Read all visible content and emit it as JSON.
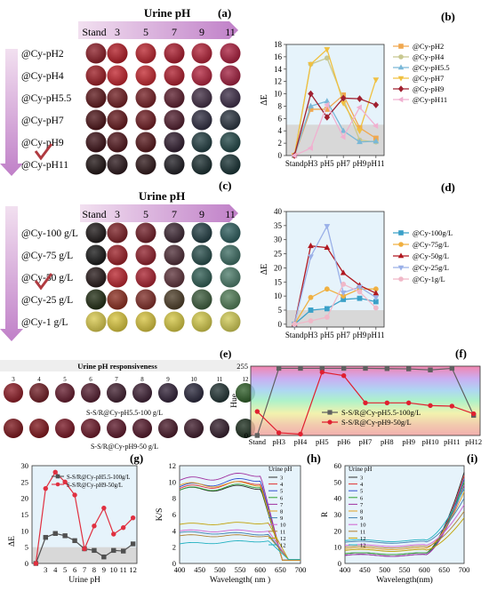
{
  "panel_labels": {
    "a": "(a)",
    "b": "(b)",
    "c": "(c)",
    "d": "(d)",
    "e": "(e)",
    "f": "(f)",
    "g": "(g)",
    "h": "(h)",
    "i": "(i)"
  },
  "panel_a": {
    "header": "Urine pH",
    "columns": [
      "Stand",
      "3",
      "5",
      "7",
      "9",
      "11"
    ],
    "rows": [
      {
        "label": "@Cy-pH2",
        "colors": [
          "#8a1a24",
          "#b01822",
          "#b8202a",
          "#a8182a",
          "#b01e34",
          "#a81a3a"
        ]
      },
      {
        "label": "@Cy-pH4",
        "colors": [
          "#9a1820",
          "#c0202a",
          "#c2242c",
          "#ac1a2a",
          "#b0203a",
          "#a01c3c"
        ]
      },
      {
        "label": "@Cy-pH5.5",
        "colors": [
          "#5c1418",
          "#6e1a1e",
          "#741c22",
          "#5a1a2a",
          "#3e2a40",
          "#3a2a44"
        ]
      },
      {
        "label": "@Cy-pH7",
        "colors": [
          "#4a1014",
          "#621418",
          "#6c181e",
          "#4e1a2a",
          "#2c2a3e",
          "#28323e"
        ]
      },
      {
        "label": "@Cy-pH9",
        "colors": [
          "#3a0e14",
          "#4e1218",
          "#541418",
          "#2e1a2c",
          "#1e3a3e",
          "#1e4444"
        ]
      },
      {
        "label": "@Cy-pH11",
        "colors": [
          "#1c1010",
          "#281418",
          "#2c1416",
          "#1c1a20",
          "#162a2c",
          "#142e30"
        ]
      }
    ]
  },
  "panel_c": {
    "header": "Urine pH",
    "columns": [
      "Stand",
      "3",
      "5",
      "7",
      "9",
      "11"
    ],
    "rows": [
      {
        "label": "@Cy-100 g/L",
        "colors": [
          "#1a1414",
          "#7a1c22",
          "#6e1a24",
          "#3a2430",
          "#1e3a40",
          "#2a5a5a"
        ]
      },
      {
        "label": "@Cy-75 g/L",
        "colors": [
          "#141414",
          "#9a1c24",
          "#8e1c28",
          "#4c2a34",
          "#244a48",
          "#3a6a60"
        ]
      },
      {
        "label": "@Cy-50 g/L",
        "colors": [
          "#241616",
          "#b8202a",
          "#a81e2c",
          "#5c3038",
          "#2c5a50",
          "#4a7a68"
        ]
      },
      {
        "label": "@Cy-25 g/L",
        "colors": [
          "#1e2a10",
          "#8a2a1c",
          "#7e2a24",
          "#4a3a24",
          "#3a5a3a",
          "#4e7a54"
        ]
      },
      {
        "label": "@Cy-1 g/L",
        "colors": [
          "#d8c84a",
          "#d8c43a",
          "#d6c23c",
          "#d4c640",
          "#d2c848",
          "#d0ca52"
        ]
      }
    ]
  },
  "panel_e": {
    "title": "Urine pH responsiveness",
    "columns": [
      "3",
      "4",
      "5",
      "6",
      "7",
      "8",
      "9",
      "10",
      "11",
      "12"
    ],
    "row1_label": "S-S/R@Cy-pH5.5-100 g/L",
    "row2_label": "S-S/R@Cy-pH9-50 g/L",
    "row1_colors": [
      "#8a1822",
      "#6e1a22",
      "#62182a",
      "#521a2c",
      "#3e1c2c",
      "#3a1c30",
      "#2e1e34",
      "#262438",
      "#1e3030",
      "#2a5a24"
    ],
    "row2_colors": [
      "#7a1218",
      "#7e1218",
      "#761220",
      "#681424",
      "#5a1426",
      "#501426",
      "#461626",
      "#3c1828",
      "#301a28",
      "#182a1a"
    ]
  },
  "chart_data": [
    {
      "id": "b",
      "type": "line",
      "categories": [
        "Stand",
        "pH3",
        "pH5",
        "pH7",
        "pH9",
        "pH11"
      ],
      "ylabel": "ΔE",
      "ylim": [
        0,
        18
      ],
      "yticks": [
        0,
        2,
        4,
        6,
        8,
        10,
        12,
        14,
        16,
        18
      ],
      "threshold": 5,
      "series": [
        {
          "name": "@Cy-pH2",
          "color": "#f0a850",
          "marker": "square",
          "values": [
            0,
            7.5,
            7.5,
            9.8,
            4.5,
            2.8
          ]
        },
        {
          "name": "@Cy-pH4",
          "color": "#c8c890",
          "marker": "circle",
          "values": [
            0,
            14.8,
            15.8,
            9.2,
            2.5,
            2.2
          ]
        },
        {
          "name": "@Cy-pH5.5",
          "color": "#7ab8d8",
          "marker": "triangle",
          "values": [
            0,
            8,
            8.8,
            4,
            2.2,
            2.3
          ]
        },
        {
          "name": "@Cy-pH7",
          "color": "#f0c040",
          "marker": "triangle-down",
          "values": [
            0,
            14.8,
            17.2,
            8.5,
            4,
            12.3
          ]
        },
        {
          "name": "@Cy-pH9",
          "color": "#a02030",
          "marker": "diamond",
          "values": [
            0,
            10,
            6.2,
            9.3,
            9.2,
            8.2
          ]
        },
        {
          "name": "@Cy-pH11",
          "color": "#f0b0d0",
          "marker": "triangle-left",
          "values": [
            0,
            1.2,
            8.2,
            3,
            7.8,
            4.8
          ]
        }
      ]
    },
    {
      "id": "d",
      "type": "line",
      "categories": [
        "Stand",
        "pH3",
        "pH5",
        "pH7",
        "pH9",
        "pH11"
      ],
      "ylabel": "ΔE",
      "ylim": [
        -1,
        40
      ],
      "yticks": [
        0,
        5,
        10,
        15,
        20,
        25,
        30,
        35,
        40
      ],
      "threshold": 5,
      "series": [
        {
          "name": "@Cy-100g/L",
          "color": "#3aa0c8",
          "marker": "square",
          "values": [
            0,
            5,
            5.5,
            8.8,
            9.2,
            8
          ]
        },
        {
          "name": "@Cy-75g/L",
          "color": "#f0b040",
          "marker": "circle",
          "values": [
            0,
            9.5,
            12.5,
            10,
            12.5,
            12.5
          ]
        },
        {
          "name": "@Cy-50g/L",
          "color": "#b01820",
          "marker": "triangle",
          "values": [
            0,
            27.8,
            27.2,
            18.2,
            13.8,
            11
          ]
        },
        {
          "name": "@Cy-25g/L",
          "color": "#9ab0e8",
          "marker": "triangle-down",
          "values": [
            0,
            24,
            34.8,
            11.2,
            13.2,
            9.5
          ]
        },
        {
          "name": "@Cy-1g/L",
          "color": "#f0b8c8",
          "marker": "circle",
          "values": [
            0,
            1.2,
            2.5,
            14.2,
            11.5,
            5.8
          ]
        }
      ]
    },
    {
      "id": "f",
      "type": "line",
      "categories": [
        "Stand",
        "pH3",
        "pH4",
        "pH5",
        "pH6",
        "pH7",
        "pH8",
        "pH9",
        "pH10",
        "pH11",
        "pH12"
      ],
      "ylabel": "Hue",
      "ylim": [
        0,
        255
      ],
      "yticks": [
        0,
        255
      ],
      "series": [
        {
          "name": "S-S/R@Cy-pH5.5-100g/L",
          "color": "#606060",
          "marker": "square",
          "values": [
            0,
            247,
            247,
            247,
            247,
            247,
            246,
            245,
            241,
            247,
            74
          ]
        },
        {
          "name": "S-S/R@Cy-pH9-50g/L",
          "color": "#e02030",
          "marker": "circle",
          "values": [
            88,
            10,
            5,
            233,
            220,
            120,
            120,
            120,
            110,
            108,
            80
          ]
        }
      ]
    },
    {
      "id": "g",
      "type": "line",
      "x": [
        2,
        3,
        4,
        5,
        6,
        7,
        8,
        9,
        10,
        11,
        12
      ],
      "xticks": [
        3,
        4,
        5,
        6,
        7,
        8,
        9,
        10,
        11,
        12
      ],
      "xlabel": "Urine pH",
      "ylabel": "ΔE",
      "ylim": [
        0,
        30
      ],
      "yticks": [
        0,
        5,
        10,
        15,
        20,
        25,
        30
      ],
      "threshold": 5,
      "series": [
        {
          "name": "S-S/R@Cy-pH5.5-100g/L",
          "color": "#505050",
          "marker": "square",
          "values": [
            0,
            8,
            9.2,
            8.5,
            7,
            4.5,
            4,
            2,
            4,
            3.8,
            6
          ]
        },
        {
          "name": "S-S/R@Cy-pH9-50g/L",
          "color": "#e03040",
          "marker": "circle",
          "values": [
            0,
            23,
            28,
            25,
            21,
            4.5,
            11.5,
            17,
            9,
            11,
            14
          ]
        }
      ]
    },
    {
      "id": "h",
      "type": "line",
      "xlabel": "Wavelength( nm )",
      "ylabel": "K/S",
      "xlim": [
        400,
        700
      ],
      "ylim": [
        0,
        12
      ],
      "xticks": [
        400,
        450,
        500,
        550,
        600,
        650,
        700
      ],
      "yticks": [
        0,
        2,
        4,
        6,
        8,
        10,
        12
      ],
      "legend_title": "Urine pH",
      "series": [
        {
          "name": "3",
          "color": "#303030",
          "y400": 9.0,
          "y550": 9.2,
          "y600": 9.4,
          "kind": "drop"
        },
        {
          "name": "4",
          "color": "#e03030",
          "y400": 9.2,
          "y550": 9.8,
          "y600": 10.0,
          "kind": "drop"
        },
        {
          "name": "5",
          "color": "#3050d0",
          "y400": 9.4,
          "y550": 10.2,
          "y600": 10.4,
          "kind": "drop"
        },
        {
          "name": "6",
          "color": "#30a030",
          "y400": 9.0,
          "y550": 9.6,
          "y600": 9.6,
          "kind": "drop"
        },
        {
          "name": "7",
          "color": "#a030a0",
          "y400": 10.2,
          "y550": 10.8,
          "y600": 11.0,
          "kind": "drop"
        },
        {
          "name": "8",
          "color": "#e0a020",
          "y400": 9.6,
          "y550": 9.8,
          "y600": 9.8,
          "kind": "drop"
        },
        {
          "name": "9",
          "color": "#4080b0",
          "y400": 3.8,
          "y550": 3.8,
          "y600": 3.6,
          "kind": "flat"
        },
        {
          "name": "10",
          "color": "#d060d0",
          "y400": 4.0,
          "y550": 4.2,
          "y600": 4.0,
          "kind": "flat"
        },
        {
          "name": "11",
          "color": "#b08030",
          "y400": 3.4,
          "y550": 3.6,
          "y600": 3.4,
          "kind": "flat"
        },
        {
          "name": "12",
          "color": "#c0a000",
          "y400": 4.8,
          "y550": 5.0,
          "y600": 5.0,
          "kind": "flat"
        },
        {
          "name": "12b",
          "color": "#20b0c0",
          "y400": 2.4,
          "y550": 2.8,
          "y600": 2.8,
          "kind": "flat"
        }
      ]
    },
    {
      "id": "i",
      "type": "line",
      "xlabel": "Wavelength(nm)",
      "ylabel": "R",
      "xlim": [
        400,
        700
      ],
      "ylim": [
        0,
        60
      ],
      "xticks": [
        400,
        450,
        500,
        550,
        600,
        650,
        700
      ],
      "yticks": [
        0,
        10,
        20,
        30,
        40,
        50,
        60
      ],
      "legend_title": "Urine pH",
      "series": [
        {
          "name": "3",
          "color": "#303030",
          "base": 6,
          "end": 56
        },
        {
          "name": "4",
          "color": "#e03030",
          "base": 5,
          "end": 54
        },
        {
          "name": "5",
          "color": "#3050d0",
          "base": 5,
          "end": 52
        },
        {
          "name": "6",
          "color": "#30a030",
          "base": 6,
          "end": 50
        },
        {
          "name": "7",
          "color": "#a030a0",
          "base": 5,
          "end": 48
        },
        {
          "name": "8",
          "color": "#e0a020",
          "base": 9,
          "end": 44
        },
        {
          "name": "9",
          "color": "#4080b0",
          "base": 13,
          "end": 40
        },
        {
          "name": "10",
          "color": "#d060d0",
          "base": 11,
          "end": 36
        },
        {
          "name": "11",
          "color": "#b08030",
          "base": 10,
          "end": 32
        },
        {
          "name": "12",
          "color": "#c0a000",
          "base": 8,
          "end": 28
        },
        {
          "name": "12b",
          "color": "#20b0c0",
          "base": 14,
          "end": 46
        }
      ]
    }
  ]
}
